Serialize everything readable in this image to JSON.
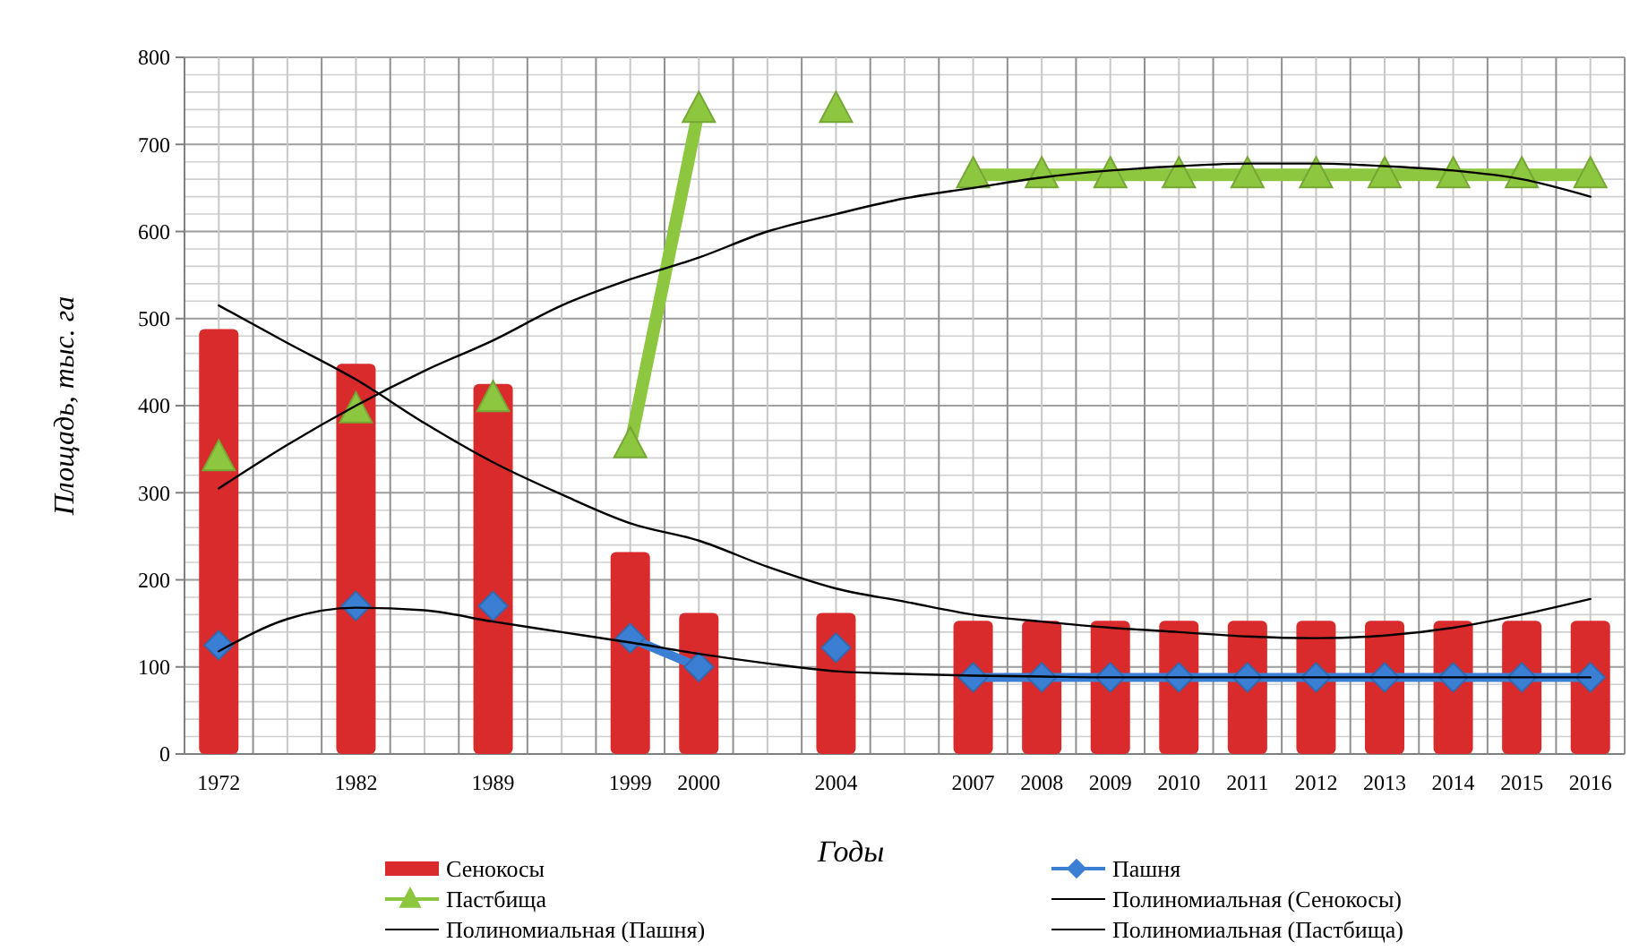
{
  "chart_data": {
    "type": "bar",
    "xlabel": "Годы",
    "ylabel": "Площадь, тыс. га",
    "categories": [
      "1972",
      null,
      "1982",
      null,
      "1989",
      null,
      "1999",
      "2000",
      null,
      "2004",
      null,
      "2007",
      "2008",
      "2009",
      "2010",
      "2011",
      "2012",
      "2013",
      "2014",
      "2015",
      "2016"
    ],
    "series": [
      {
        "name": "Сенокосы",
        "color": "#d92b2b",
        "values": [
          488,
          null,
          448,
          null,
          425,
          null,
          232,
          162,
          null,
          162,
          null,
          153,
          153,
          153,
          153,
          153,
          153,
          153,
          153,
          153,
          153
        ]
      },
      {
        "name": "Пашня",
        "type": "line",
        "marker": "diamond",
        "color": "#3b7fd4",
        "values": [
          125,
          null,
          170,
          null,
          170,
          null,
          133,
          100,
          null,
          122,
          null,
          88,
          88,
          88,
          88,
          88,
          88,
          88,
          88,
          88,
          88
        ]
      },
      {
        "name": "Пастбища",
        "type": "line",
        "marker": "triangle",
        "color": "#8dc63f",
        "values": [
          340,
          null,
          395,
          null,
          408,
          null,
          355,
          740,
          null,
          740,
          null,
          665,
          665,
          665,
          665,
          665,
          665,
          665,
          665,
          665,
          665
        ]
      },
      {
        "name": "Полиномиальная (Сенокосы)",
        "type": "line",
        "marker": "none",
        "color": "#000000",
        "values": [
          515,
          472,
          430,
          380,
          335,
          298,
          265,
          245,
          215,
          190,
          175,
          160,
          152,
          145,
          140,
          135,
          133,
          136,
          145,
          160,
          178
        ]
      },
      {
        "name": "Полиномиальная (Пашня)",
        "type": "line",
        "marker": "none",
        "color": "#000000",
        "values": [
          118,
          155,
          168,
          165,
          152,
          140,
          128,
          115,
          104,
          95,
          92,
          90,
          89,
          88,
          88,
          88,
          88,
          88,
          88,
          88,
          88
        ]
      },
      {
        "name": "Полиномиальная (Пастбища)",
        "type": "line",
        "marker": "none",
        "color": "#000000",
        "values": [
          305,
          355,
          400,
          440,
          475,
          515,
          545,
          570,
          600,
          620,
          638,
          650,
          662,
          670,
          675,
          678,
          678,
          675,
          670,
          660,
          640
        ]
      }
    ],
    "ylim": [
      0,
      800
    ],
    "yticks": [
      0,
      100,
      200,
      300,
      400,
      500,
      600,
      700,
      800
    ],
    "grid": true,
    "legend": "bottom"
  }
}
